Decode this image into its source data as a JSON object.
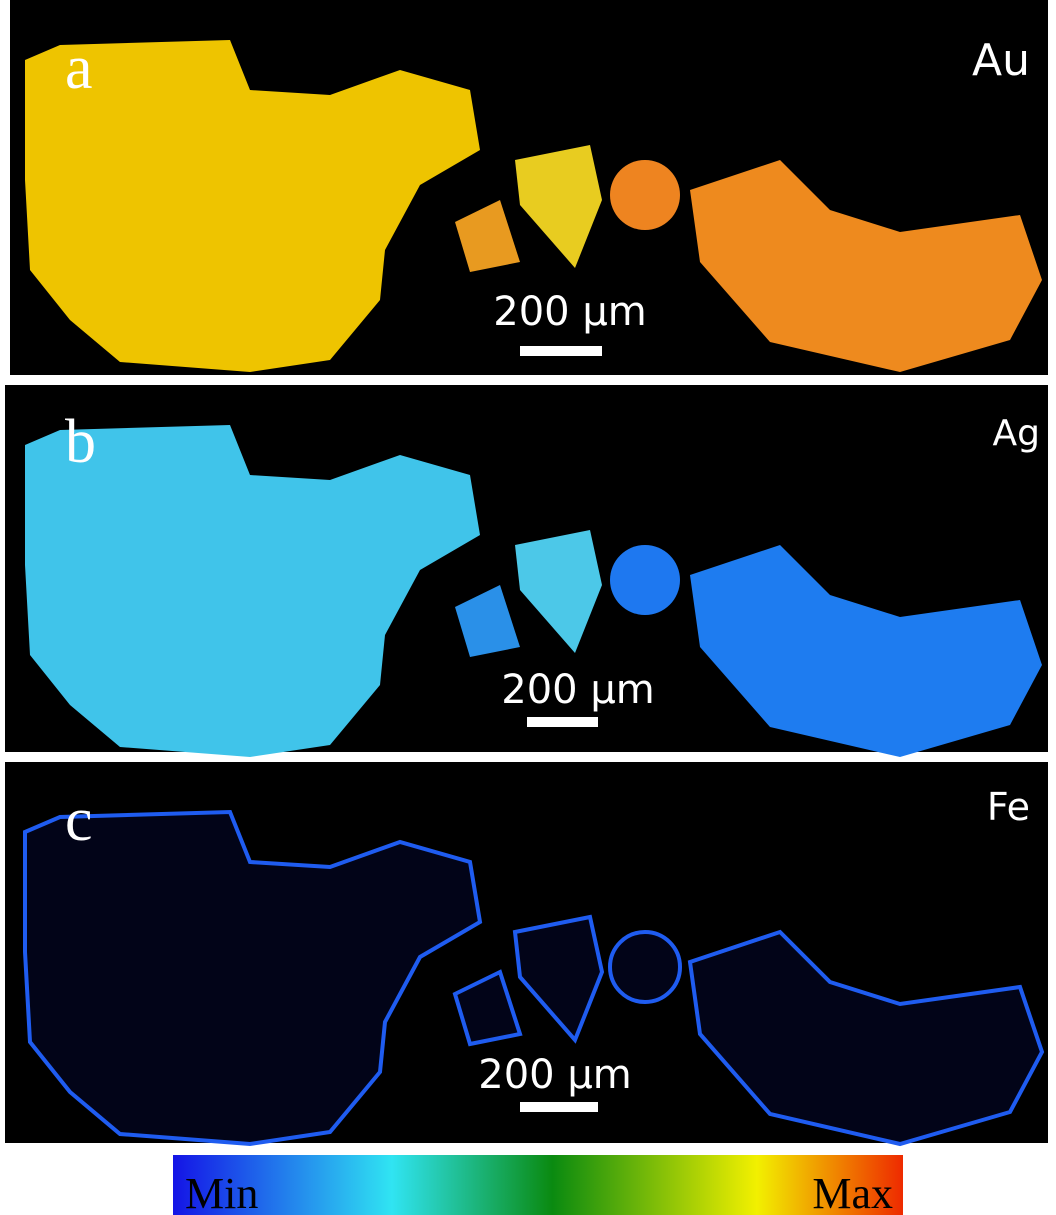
{
  "panels": [
    {
      "letter": "a",
      "element": "Au",
      "scale_bar": "200 µm"
    },
    {
      "letter": "b",
      "element": "Ag",
      "scale_bar": "200 µm"
    },
    {
      "letter": "c",
      "element": "Fe",
      "scale_bar": "200 µm"
    }
  ],
  "colorbar": {
    "min_label": "Min",
    "max_label": "Max"
  }
}
